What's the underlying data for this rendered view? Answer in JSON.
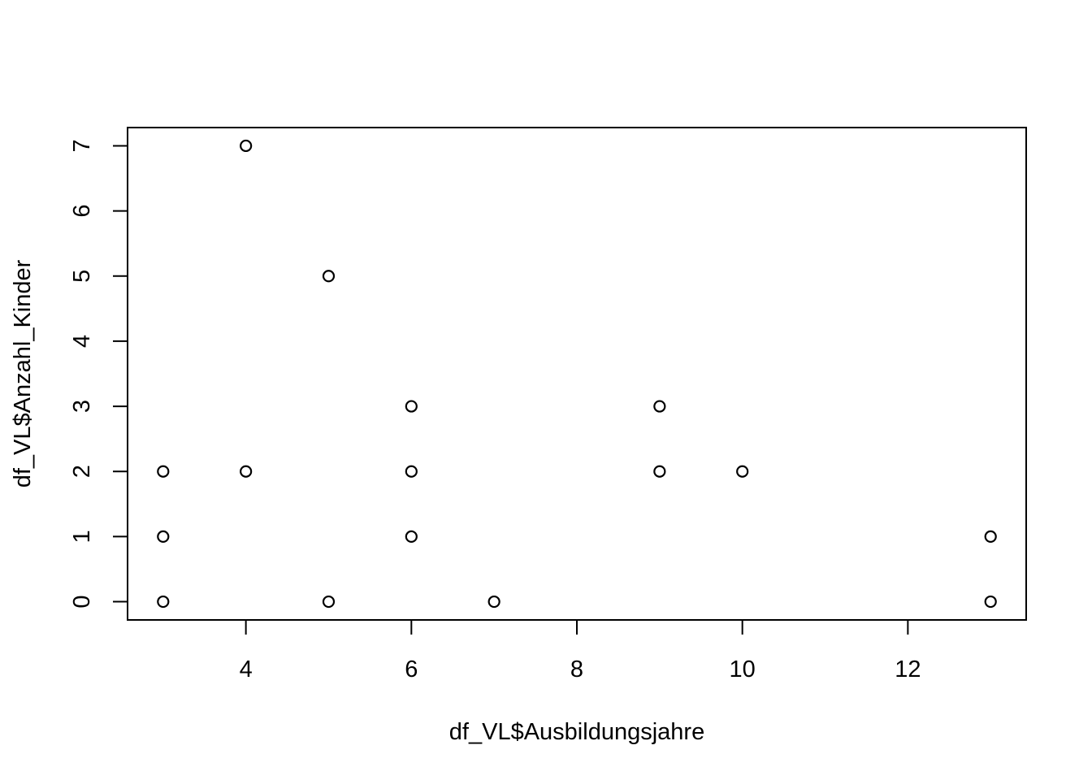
{
  "chart_data": {
    "type": "scatter",
    "title": "",
    "xlabel": "df_VL$Ausbildungsjahre",
    "ylabel": "df_VL$Anzahl_Kinder",
    "xlim": [
      2.57,
      13.43
    ],
    "ylim": [
      -0.28,
      7.28
    ],
    "x_ticks": [
      4,
      6,
      8,
      10,
      12
    ],
    "y_ticks": [
      0,
      1,
      2,
      3,
      4,
      5,
      6,
      7
    ],
    "marker": "open-circle",
    "color": "#000000",
    "grid": false,
    "points": [
      {
        "x": 3,
        "y": 2
      },
      {
        "x": 3,
        "y": 1
      },
      {
        "x": 3,
        "y": 0
      },
      {
        "x": 4,
        "y": 7
      },
      {
        "x": 4,
        "y": 2
      },
      {
        "x": 5,
        "y": 5
      },
      {
        "x": 5,
        "y": 0
      },
      {
        "x": 6,
        "y": 3
      },
      {
        "x": 6,
        "y": 2
      },
      {
        "x": 6,
        "y": 1
      },
      {
        "x": 7,
        "y": 0
      },
      {
        "x": 9,
        "y": 3
      },
      {
        "x": 9,
        "y": 2
      },
      {
        "x": 10,
        "y": 2
      },
      {
        "x": 13,
        "y": 1
      },
      {
        "x": 13,
        "y": 0
      }
    ]
  }
}
